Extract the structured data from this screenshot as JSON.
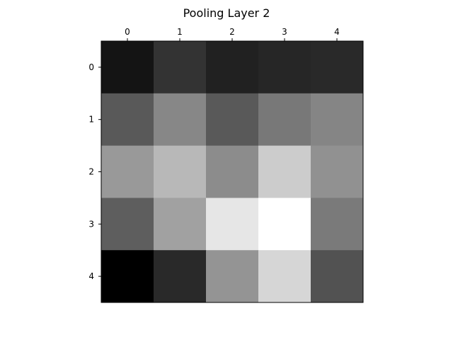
{
  "chart_data": {
    "type": "heatmap",
    "title": "Pooling Layer 2",
    "xlabel": "",
    "ylabel": "",
    "x_ticks": [
      "0",
      "1",
      "2",
      "3",
      "4"
    ],
    "y_ticks": [
      "0",
      "1",
      "2",
      "3",
      "4"
    ],
    "x_axis_position": "top",
    "colormap": "gray",
    "grid": false,
    "value_range": [
      0,
      1
    ],
    "values": [
      [
        0.08,
        0.2,
        0.13,
        0.15,
        0.16
      ],
      [
        0.35,
        0.53,
        0.35,
        0.47,
        0.52
      ],
      [
        0.6,
        0.72,
        0.55,
        0.8,
        0.57
      ],
      [
        0.37,
        0.63,
        0.9,
        1.0,
        0.48
      ],
      [
        0.0,
        0.16,
        0.58,
        0.84,
        0.32
      ]
    ]
  }
}
